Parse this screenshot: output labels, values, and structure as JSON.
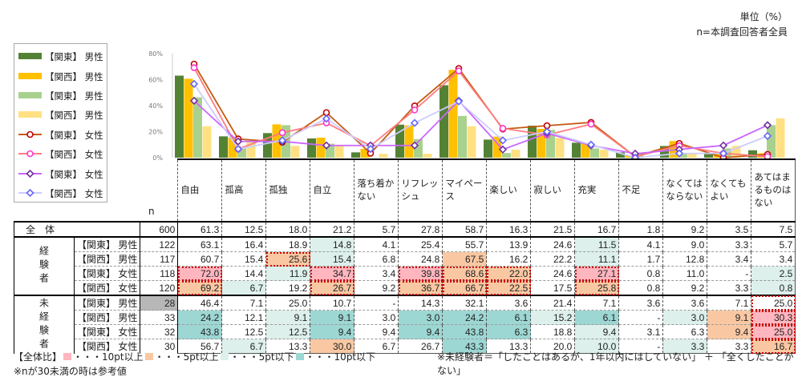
{
  "unit": "単位（%）",
  "base": "n=本調査回答者全員",
  "n_label": "n",
  "categories": [
    "自由",
    "孤高",
    "孤独",
    "自立",
    "落ち着かない",
    "リフレッシュ",
    "マイペース",
    "楽しい",
    "寂しい",
    "充実",
    "不足",
    "なくてはならない",
    "なくてもよい",
    "あてはまるものはない"
  ],
  "chart_data": {
    "type": "bar+line",
    "ylim": [
      0,
      80
    ],
    "yticks": [
      "0%",
      "20%",
      "40%",
      "60%",
      "80%"
    ],
    "series": [
      {
        "name": "【関東】 男性",
        "kind": "bar",
        "color": "#548235",
        "row": 1
      },
      {
        "name": "【関西】 男性",
        "kind": "bar",
        "color": "#ffc000",
        "row": 2
      },
      {
        "name": "【関東】 男性",
        "kind": "bar",
        "color": "#a9d18e",
        "row": 5
      },
      {
        "name": "【関西】 男性",
        "kind": "bar",
        "color": "#ffe083",
        "row": 6
      },
      {
        "name": "【関東】 女性",
        "kind": "line",
        "color": "#c55a11",
        "marker": "circle",
        "mcolor": "#c00000",
        "row": 3
      },
      {
        "name": "【関西】 女性",
        "kind": "line",
        "color": "#ff7c80",
        "marker": "circle",
        "mcolor": "#ff33cc",
        "row": 4
      },
      {
        "name": "【関東】 女性",
        "kind": "line",
        "color": "#cc66ff",
        "marker": "diamond",
        "mcolor": "#7030a0",
        "row": 7
      },
      {
        "name": "【関西】 女性",
        "kind": "line",
        "color": "#ccccff",
        "marker": "diamond",
        "mcolor": "#6666ff",
        "row": 8
      }
    ]
  },
  "table": {
    "overall_label": "全　体",
    "groups": [
      {
        "label": "経験者",
        "rows": [
          1,
          2,
          3,
          4
        ]
      },
      {
        "label": "未経験者",
        "rows": [
          5,
          6,
          7,
          8
        ]
      }
    ],
    "rows": [
      {
        "label": "",
        "n": "600",
        "values": [
          "61.3",
          "12.5",
          "18.0",
          "21.2",
          "5.7",
          "27.8",
          "58.7",
          "16.3",
          "21.5",
          "16.7",
          "1.8",
          "9.2",
          "3.5",
          "7.5"
        ],
        "marks": [
          "",
          "",
          "",
          "",
          "",
          "",
          "",
          "",
          "",
          "",
          "",
          "",
          "",
          ""
        ]
      },
      {
        "label": "【関東】 男性",
        "n": "122",
        "values": [
          "63.1",
          "16.4",
          "18.9",
          "14.8",
          "4.1",
          "25.4",
          "55.7",
          "13.9",
          "24.6",
          "11.5",
          "4.1",
          "9.0",
          "3.3",
          "5.7"
        ],
        "marks": [
          "",
          "",
          "",
          "l",
          "",
          "",
          "",
          "",
          "",
          "l",
          "",
          "",
          "",
          ""
        ]
      },
      {
        "label": "【関西】 男性",
        "n": "117",
        "values": [
          "60.7",
          "15.4",
          "25.6",
          "15.4",
          "6.8",
          "24.8",
          "67.5",
          "16.2",
          "22.2",
          "11.1",
          "1.7",
          "12.8",
          "3.4",
          "3.4"
        ],
        "marks": [
          "",
          "",
          "od",
          "l",
          "",
          "",
          "o",
          "",
          "",
          "l",
          "",
          "",
          "",
          ""
        ]
      },
      {
        "label": "【関東】 女性",
        "n": "118",
        "values": [
          "72.0",
          "14.4",
          "11.9",
          "34.7",
          "3.4",
          "39.8",
          "68.6",
          "22.0",
          "24.6",
          "27.1",
          "0.8",
          "11.0",
          "-",
          "2.5"
        ],
        "marks": [
          "rd",
          "",
          "l",
          "rd",
          "",
          "rd",
          "od",
          "od",
          "",
          "rd",
          "",
          "",
          "",
          "l"
        ]
      },
      {
        "label": "【関西】 女性",
        "n": "120",
        "values": [
          "69.2",
          "6.7",
          "19.2",
          "26.7",
          "9.2",
          "36.7",
          "66.7",
          "22.5",
          "17.5",
          "25.8",
          "0.8",
          "9.2",
          "3.3",
          "0.8"
        ],
        "marks": [
          "od",
          "l",
          "",
          "od",
          "",
          "od",
          "od",
          "od",
          "",
          "od",
          "",
          "",
          "",
          "l"
        ]
      },
      {
        "label": "【関東】 男性",
        "n": "28",
        "ngray": true,
        "values": [
          "46.4",
          "7.1",
          "25.0",
          "10.7",
          "-",
          "14.3",
          "32.1",
          "3.6",
          "21.4",
          "7.1",
          "3.6",
          "3.6",
          "7.1",
          "25.0"
        ],
        "marks": [
          "",
          "",
          "",
          "",
          "",
          "",
          "",
          "",
          "",
          "",
          "",
          "",
          "",
          "d"
        ]
      },
      {
        "label": "【関西】 男性",
        "n": "33",
        "values": [
          "24.2",
          "12.1",
          "9.1",
          "9.1",
          "3.0",
          "3.0",
          "24.2",
          "6.1",
          "15.2",
          "6.1",
          "-",
          "3.0",
          "9.1",
          "30.3"
        ],
        "marks": [
          "t",
          "",
          "l",
          "t",
          "",
          "t",
          "t",
          "t",
          "l",
          "t",
          "",
          "l",
          "o",
          "rd"
        ]
      },
      {
        "label": "【関東】 女性",
        "n": "32",
        "values": [
          "43.8",
          "12.5",
          "12.5",
          "9.4",
          "9.4",
          "9.4",
          "43.8",
          "6.3",
          "18.8",
          "9.4",
          "3.1",
          "6.3",
          "9.4",
          "25.0"
        ],
        "marks": [
          "t",
          "",
          "l",
          "t",
          "",
          "t",
          "t",
          "t",
          "",
          "l",
          "",
          "",
          "o",
          "rd"
        ]
      },
      {
        "label": "【関西】 女性",
        "n": "30",
        "values": [
          "56.7",
          "6.7",
          "13.3",
          "30.0",
          "6.7",
          "26.7",
          "43.3",
          "13.3",
          "20.0",
          "10.0",
          "-",
          "3.3",
          "3.3",
          "16.7"
        ],
        "marks": [
          "",
          "l",
          "",
          "o",
          "",
          "",
          "t",
          "",
          "",
          "l",
          "",
          "l",
          "",
          "od"
        ]
      }
    ]
  },
  "footer": {
    "legend_title": "【全体比】",
    "items": [
      {
        "code": "r",
        "label": "・・・10pt以上"
      },
      {
        "code": "o",
        "label": "・・・5pt以上"
      },
      {
        "code": "l",
        "label": "・・・5pt以下"
      },
      {
        "code": "t",
        "label": "・・・10pt以下"
      }
    ],
    "note_n": "※nが30未満の時は参考値",
    "note_def": "※未経験者＝「したことはあるが、1年以内にはしていない」 ＋ 「全くしたことがない」"
  }
}
